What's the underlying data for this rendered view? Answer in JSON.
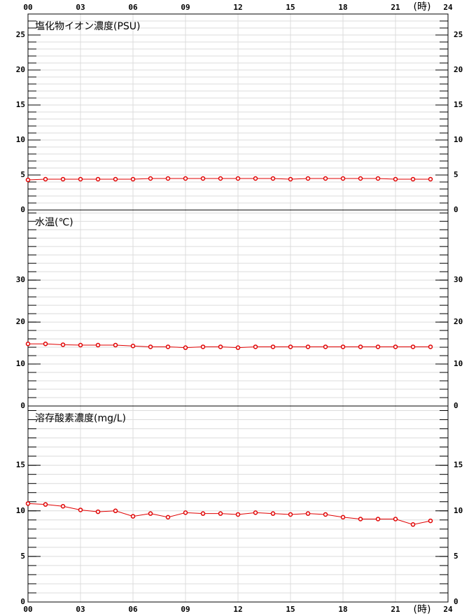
{
  "chart_data": [
    {
      "type": "line",
      "title": "塩化物イオン濃度(PSU)",
      "x_label": "(時)",
      "x": [
        0,
        1,
        2,
        3,
        4,
        5,
        6,
        7,
        8,
        9,
        10,
        11,
        12,
        13,
        14,
        15,
        16,
        17,
        18,
        19,
        20,
        21,
        22,
        23
      ],
      "values": [
        4.3,
        4.4,
        4.4,
        4.4,
        4.4,
        4.4,
        4.4,
        4.5,
        4.5,
        4.5,
        4.5,
        4.5,
        4.5,
        4.5,
        4.5,
        4.4,
        4.5,
        4.5,
        4.5,
        4.5,
        4.5,
        4.4,
        4.4,
        4.4
      ],
      "color": "#e00000",
      "xlim": [
        0,
        24
      ],
      "xticks": [
        {
          "value": 0,
          "label": "00"
        },
        {
          "value": 3,
          "label": "03"
        },
        {
          "value": 6,
          "label": "06"
        },
        {
          "value": 9,
          "label": "09"
        },
        12,
        15,
        18,
        21,
        24
      ],
      "ylim": [
        0,
        28
      ],
      "yticks": [
        0,
        5,
        10,
        15,
        20,
        25
      ],
      "yminor": [
        1,
        2,
        3,
        4,
        5,
        6,
        7,
        8,
        9,
        10,
        11,
        12,
        13,
        14,
        15,
        16,
        17,
        18,
        19,
        20,
        21,
        22,
        23,
        24,
        25,
        26,
        27
      ],
      "grid": true
    },
    {
      "type": "line",
      "title": "水温(℃)",
      "x_label": "(時)",
      "x": [
        0,
        1,
        2,
        3,
        4,
        5,
        6,
        7,
        8,
        9,
        10,
        11,
        12,
        13,
        14,
        15,
        16,
        17,
        18,
        19,
        20,
        21,
        22,
        23
      ],
      "values": [
        14.8,
        14.8,
        14.6,
        14.5,
        14.5,
        14.5,
        14.3,
        14.1,
        14.1,
        13.9,
        14.1,
        14.1,
        13.9,
        14.1,
        14.1,
        14.1,
        14.1,
        14.1,
        14.1,
        14.1,
        14.1,
        14.1,
        14.1,
        14.1
      ],
      "color": "#e00000",
      "xlim": [
        0,
        24
      ],
      "xticks": [
        {
          "value": 0,
          "label": "00"
        },
        {
          "value": 3,
          "label": "03"
        },
        {
          "value": 6,
          "label": "06"
        },
        {
          "value": 9,
          "label": "09"
        },
        12,
        15,
        18,
        21,
        24
      ],
      "ylim": [
        0,
        46.7
      ],
      "yticks": [
        0,
        10,
        20,
        30
      ],
      "yminor": [
        2,
        4,
        6,
        8,
        10,
        12,
        14,
        16,
        18,
        20,
        22,
        24,
        26,
        28,
        30,
        32,
        34,
        36,
        38,
        40,
        42,
        44,
        46
      ],
      "grid": true
    },
    {
      "type": "line",
      "title": "溶存酸素濃度(mg/L)",
      "x_label": "(時)",
      "x": [
        0,
        1,
        2,
        3,
        4,
        5,
        6,
        7,
        8,
        9,
        10,
        11,
        12,
        13,
        14,
        15,
        16,
        17,
        18,
        19,
        20,
        21,
        22,
        23
      ],
      "values": [
        10.8,
        10.7,
        10.5,
        10.1,
        9.9,
        10.0,
        9.4,
        9.7,
        9.3,
        9.8,
        9.7,
        9.7,
        9.6,
        9.8,
        9.7,
        9.6,
        9.7,
        9.6,
        9.3,
        9.1,
        9.1,
        9.1,
        8.5,
        8.9
      ],
      "color": "#e00000",
      "xlim": [
        0,
        24
      ],
      "xticks": [
        {
          "value": 0,
          "label": "00"
        },
        {
          "value": 3,
          "label": "03"
        },
        {
          "value": 6,
          "label": "06"
        },
        {
          "value": 9,
          "label": "09"
        },
        12,
        15,
        18,
        21,
        24
      ],
      "ylim": [
        0,
        21.5
      ],
      "yticks": [
        0,
        5,
        10,
        15
      ],
      "yminor": [
        1,
        2,
        3,
        4,
        5,
        6,
        7,
        8,
        9,
        10,
        11,
        12,
        13,
        14,
        15,
        16,
        17,
        18,
        19,
        20,
        21
      ],
      "grid": true
    }
  ]
}
